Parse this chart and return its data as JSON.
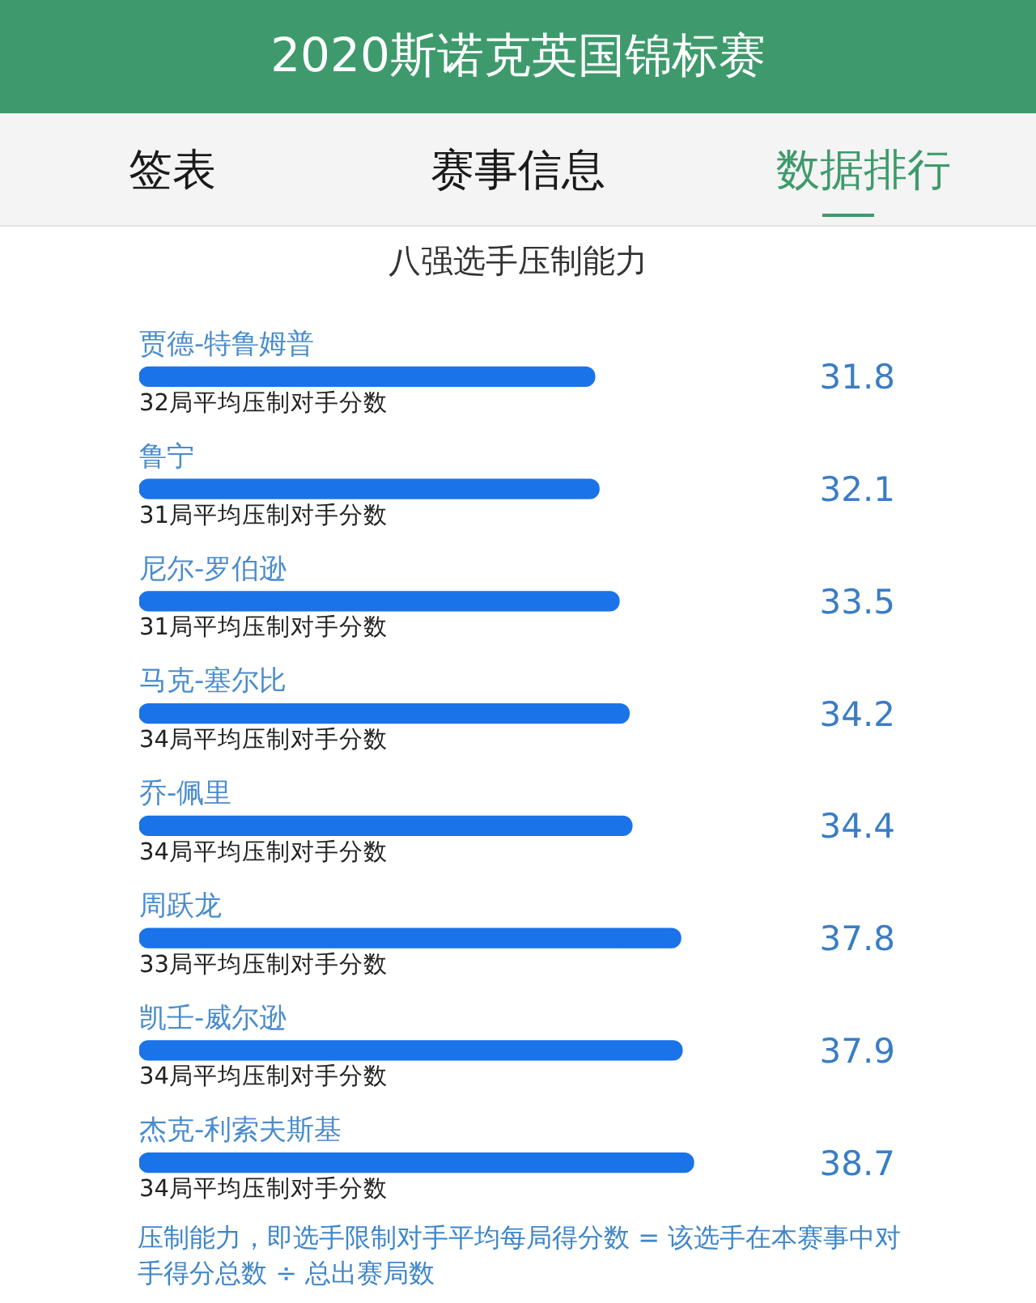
{
  "chart_data": {
    "type": "bar",
    "orientation": "horizontal",
    "title": "2020斯诺克英国锦标赛",
    "subtitle": "八强选手压制能力",
    "categories": [
      "贾德-特鲁姆普",
      "鲁宁",
      "尼尔-罗伯逊",
      "马克-塞尔比",
      "乔-佩里",
      "周跃龙",
      "凯壬-威尔逊",
      "杰克-利索夫斯基"
    ],
    "values": [
      31.8,
      32.1,
      33.5,
      34.2,
      34.4,
      37.8,
      37.9,
      38.7
    ],
    "color": "#1a73e8",
    "tick_labels": "y",
    "grid": false,
    "legend": false,
    "data_labels": true,
    "annotations": [
      "签表",
      "赛事信息",
      "数据排行",
      {
        "text": "32局平均压制对手分数",
        "y": "贾德-特鲁姆普"
      },
      {
        "text": "31局平均压制对手分数",
        "y": "鲁宁"
      },
      {
        "text": "31局平均压制对手分数",
        "y": "尼尔-罗伯逊"
      },
      {
        "text": "34局平均压制对手分数",
        "y": "马克-塞尔比"
      },
      {
        "text": "34局平均压制对手分数",
        "y": "乔-佩里"
      },
      {
        "text": "33局平均压制对手分数",
        "y": "周跃龙"
      },
      {
        "text": "34局平均压制对手分数",
        "y": "凯壬-威尔逊"
      },
      {
        "text": "34局平均压制对手分数",
        "y": "杰克-利索夫斯基"
      },
      "压制能力，即选手限制对手平均每局得分数 = 该选手在本赛事中对手得分总数 ÷ 总出赛局数"
    ]
  }
}
